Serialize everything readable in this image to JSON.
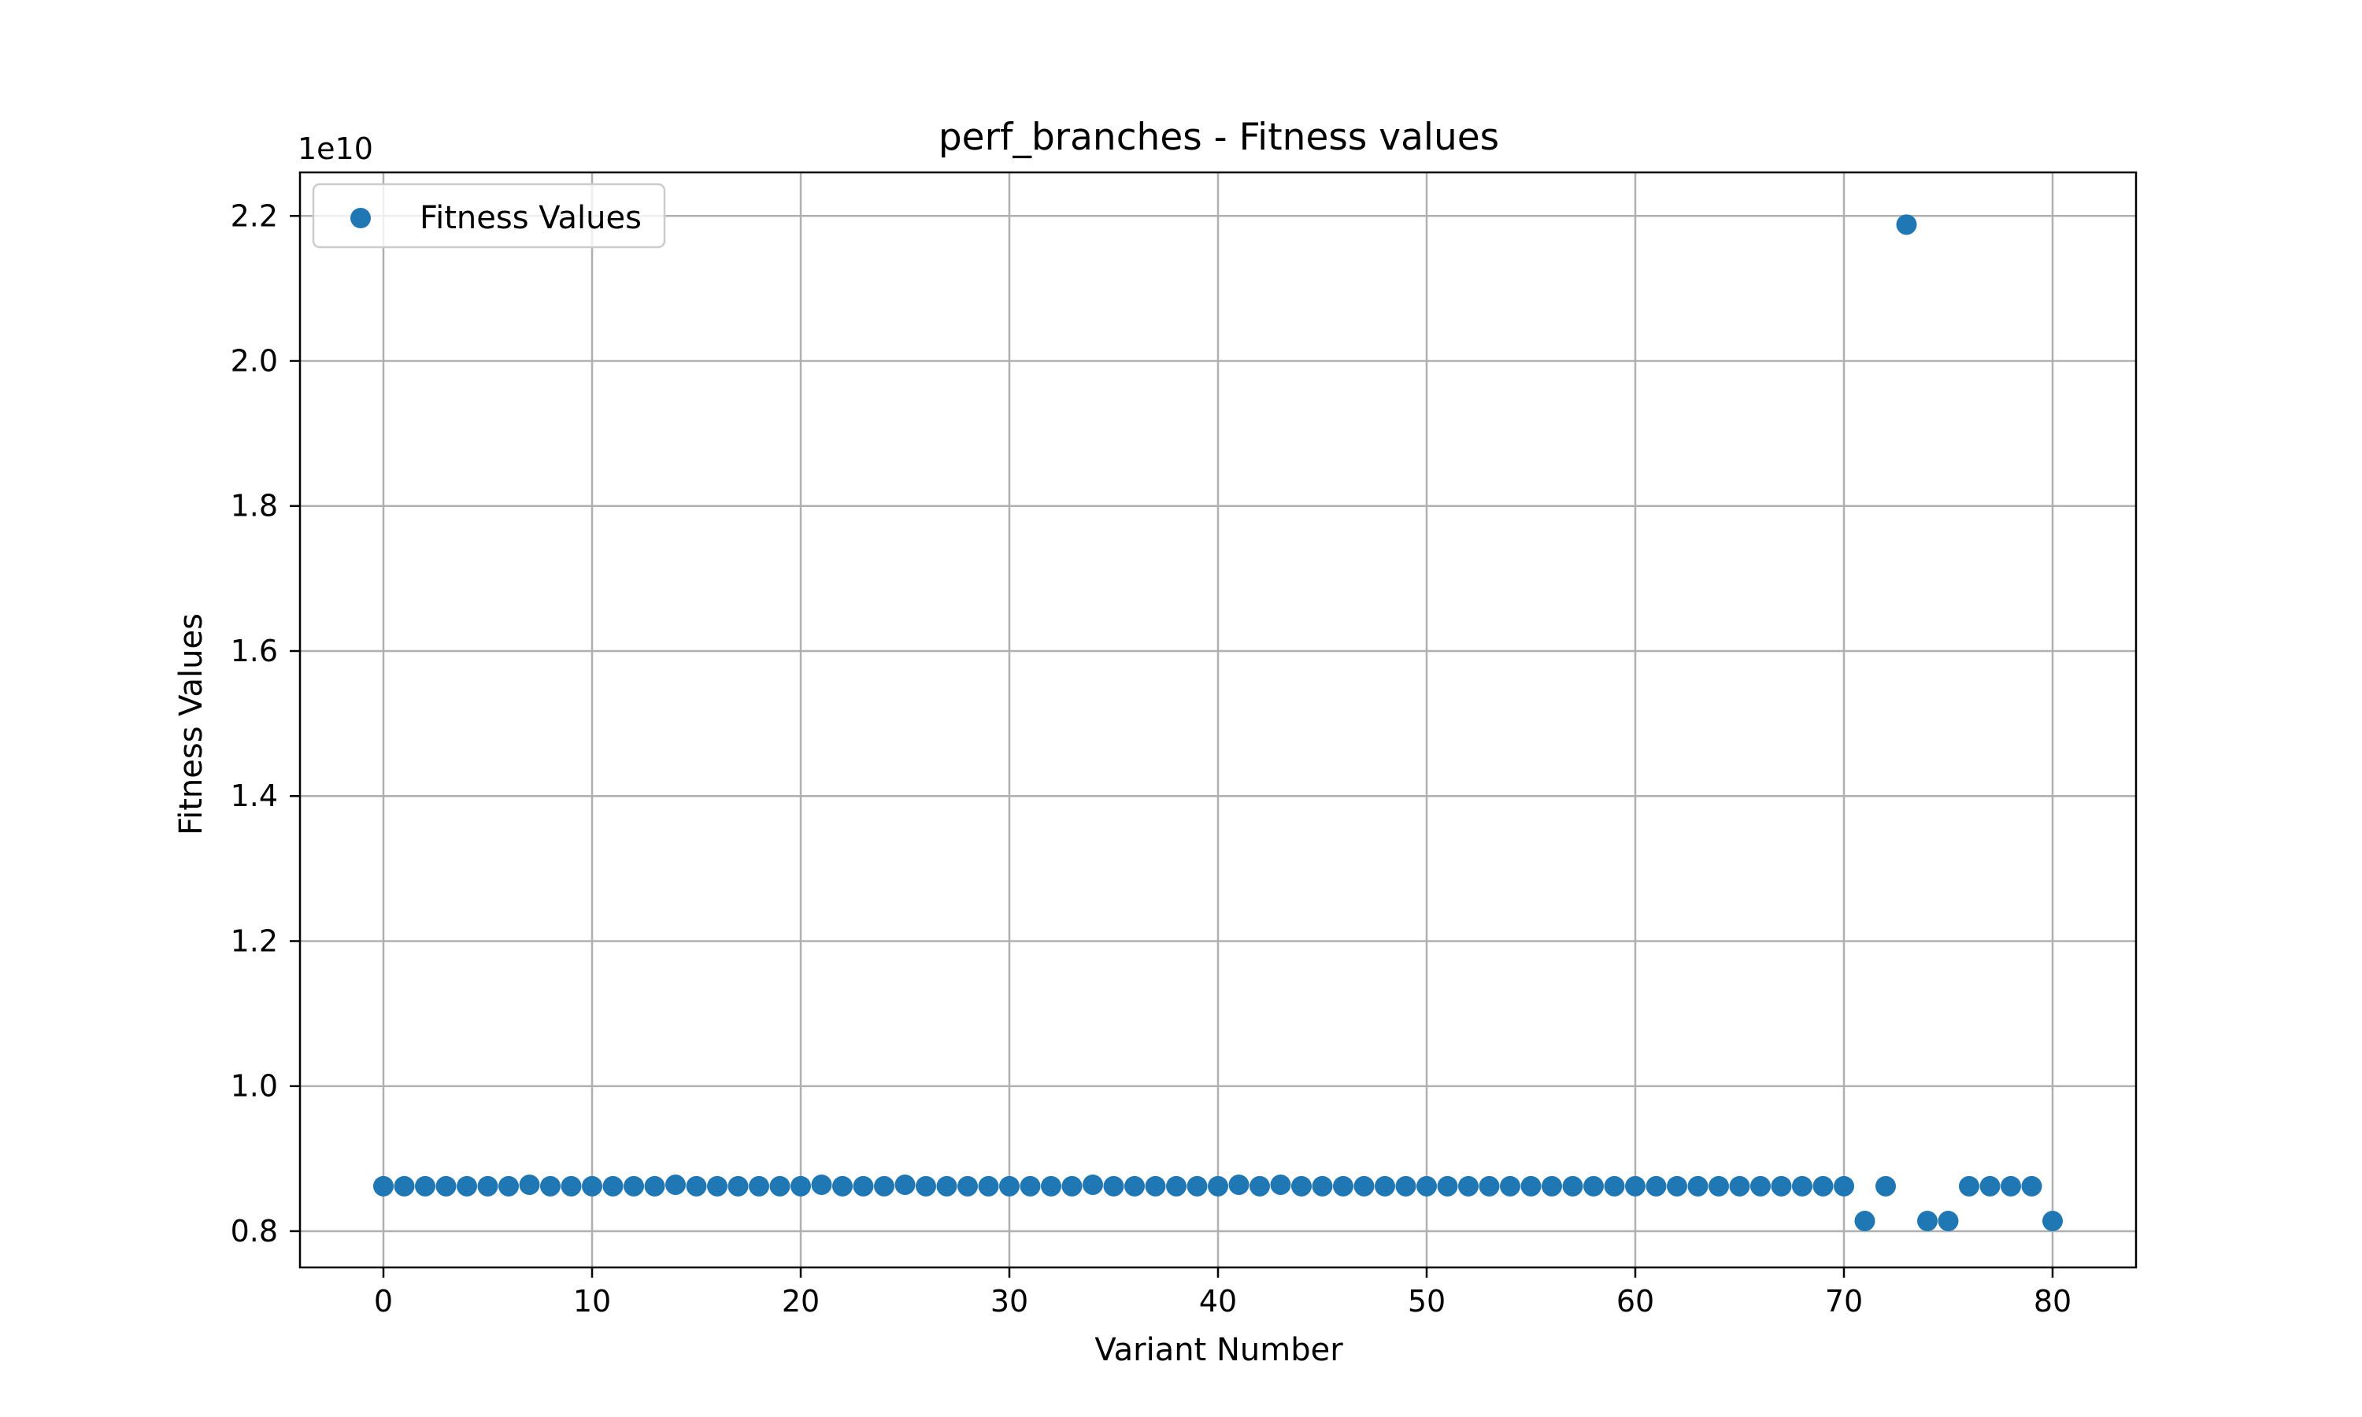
{
  "chart_data": {
    "type": "scatter",
    "title": "perf_branches - Fitness values",
    "xlabel": "Variant Number",
    "ylabel": "Fitness Values",
    "y_offset_label": "1e10",
    "y_scale_factor": 10000000000,
    "xlim": [
      -4,
      84
    ],
    "ylim": [
      7500000000.0,
      22600000000.0
    ],
    "x_ticks": [
      0,
      10,
      20,
      30,
      40,
      50,
      60,
      70,
      80
    ],
    "x_tick_labels": [
      "0",
      "10",
      "20",
      "30",
      "40",
      "50",
      "60",
      "70",
      "80"
    ],
    "y_ticks": [
      8000000000.0,
      10000000000.0,
      12000000000.0,
      14000000000.0,
      16000000000.0,
      18000000000.0,
      20000000000.0,
      22000000000.0
    ],
    "y_tick_labels": [
      "0.8",
      "1.0",
      "1.2",
      "1.4",
      "1.6",
      "1.8",
      "2.0",
      "2.2"
    ],
    "grid": true,
    "legend_position": "top-left",
    "series": [
      {
        "name": "Fitness Values",
        "color": "#1f77b4",
        "x": [
          0,
          1,
          2,
          3,
          4,
          5,
          6,
          7,
          8,
          9,
          10,
          11,
          12,
          13,
          14,
          15,
          16,
          17,
          18,
          19,
          20,
          21,
          22,
          23,
          24,
          25,
          26,
          27,
          28,
          29,
          30,
          31,
          32,
          33,
          34,
          35,
          36,
          37,
          38,
          39,
          40,
          41,
          42,
          43,
          44,
          45,
          46,
          47,
          48,
          49,
          50,
          51,
          52,
          53,
          54,
          55,
          56,
          57,
          58,
          59,
          60,
          61,
          62,
          63,
          64,
          65,
          66,
          67,
          68,
          69,
          70,
          71,
          72,
          73,
          74,
          75,
          76,
          77,
          78,
          79,
          80
        ],
        "y": [
          8620000000.0,
          8620000000.0,
          8620000000.0,
          8620000000.0,
          8620000000.0,
          8620000000.0,
          8620000000.0,
          8640000000.0,
          8620000000.0,
          8620000000.0,
          8620000000.0,
          8620000000.0,
          8620000000.0,
          8620000000.0,
          8640000000.0,
          8620000000.0,
          8620000000.0,
          8620000000.0,
          8620000000.0,
          8620000000.0,
          8620000000.0,
          8640000000.0,
          8620000000.0,
          8620000000.0,
          8620000000.0,
          8640000000.0,
          8620000000.0,
          8620000000.0,
          8620000000.0,
          8620000000.0,
          8620000000.0,
          8620000000.0,
          8620000000.0,
          8620000000.0,
          8640000000.0,
          8620000000.0,
          8620000000.0,
          8620000000.0,
          8620000000.0,
          8620000000.0,
          8620000000.0,
          8640000000.0,
          8620000000.0,
          8640000000.0,
          8620000000.0,
          8620000000.0,
          8620000000.0,
          8620000000.0,
          8620000000.0,
          8620000000.0,
          8620000000.0,
          8620000000.0,
          8620000000.0,
          8620000000.0,
          8620000000.0,
          8620000000.0,
          8620000000.0,
          8620000000.0,
          8620000000.0,
          8620000000.0,
          8620000000.0,
          8620000000.0,
          8620000000.0,
          8620000000.0,
          8620000000.0,
          8620000000.0,
          8620000000.0,
          8620000000.0,
          8620000000.0,
          8620000000.0,
          8620000000.0,
          8140000000.0,
          8620000000.0,
          21880000000.0,
          8140000000.0,
          8140000000.0,
          8620000000.0,
          8620000000.0,
          8620000000.0,
          8620000000.0,
          8140000000.0
        ]
      }
    ]
  }
}
